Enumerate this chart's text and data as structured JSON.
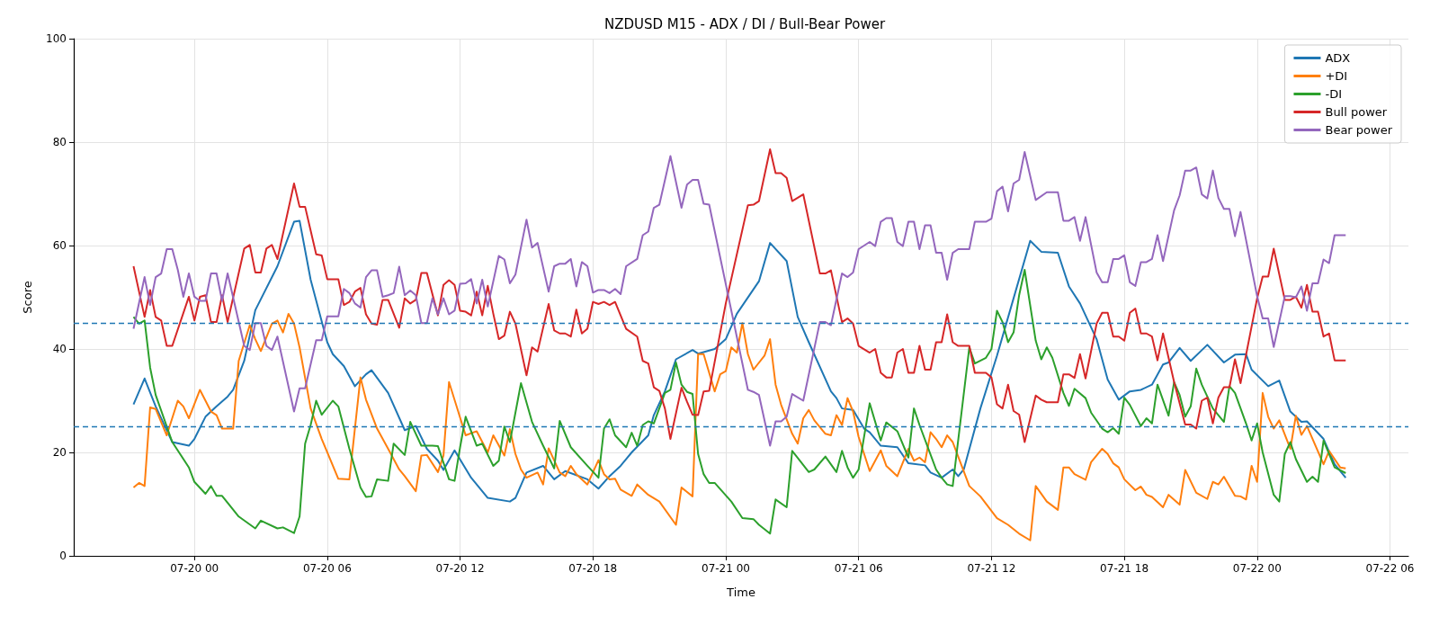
{
  "chart_data": {
    "type": "line",
    "title": "NZDUSD M15 - ADX / DI / Bull-Bear Power",
    "xlabel": "Time",
    "ylabel": "Score",
    "xlim": [
      "--07-19T18:33",
      "--07-22T06:50"
    ],
    "xticks": [
      {
        "value": "--07-20T00:00",
        "label": "07-20 00"
      },
      {
        "value": "--07-20T06:00",
        "label": "07-20 06"
      },
      {
        "value": "--07-20T12:00",
        "label": "07-20 12"
      },
      {
        "value": "--07-20T18:00",
        "label": "07-20 18"
      },
      {
        "value": "--07-21T00:00",
        "label": "07-21 00"
      },
      {
        "value": "--07-21T06:00",
        "label": "07-21 06"
      },
      {
        "value": "--07-21T12:00",
        "label": "07-21 12"
      },
      {
        "value": "--07-21T18:00",
        "label": "07-21 18"
      },
      {
        "value": "--07-22T00:00",
        "label": "07-22 00"
      },
      {
        "value": "--07-22T06:00",
        "label": "07-22 06"
      }
    ],
    "ylim": [
      0,
      100
    ],
    "yticks": [
      0,
      20,
      40,
      60,
      80,
      100
    ],
    "grid": true,
    "legend": "top right",
    "marker": "none",
    "line_style": "solid",
    "ref_lines": [
      {
        "axis": "y",
        "value": 45,
        "color": "#1f77b4",
        "line_style": "dashed"
      },
      {
        "axis": "y",
        "value": 25,
        "color": "#1f77b4",
        "line_style": "dashed"
      }
    ],
    "series": [
      {
        "name": "ADX",
        "color": "#1f77b4",
        "x": [
          "--07-19T21:15",
          "--07-19T21:45",
          "--07-19T22:15",
          "--07-19T23:00",
          "--07-19T23:45",
          "--07-20T00:00",
          "--07-20T00:30",
          "--07-20T01:00",
          "--07-20T01:30",
          "--07-20T01:45",
          "--07-20T02:15",
          "--07-20T02:45",
          "--07-20T03:45",
          "--07-20T04:30",
          "--07-20T04:45",
          "--07-20T05:15",
          "--07-20T06:00",
          "--07-20T06:15",
          "--07-20T06:45",
          "--07-20T07:15",
          "--07-20T07:45",
          "--07-20T08:00",
          "--07-20T08:45",
          "--07-20T09:30",
          "--07-20T10:00",
          "--07-20T10:30",
          "--07-20T11:00",
          "--07-20T11:15",
          "--07-20T11:45",
          "--07-20T12:30",
          "--07-20T13:15",
          "--07-20T14:15",
          "--07-20T14:30",
          "--07-20T15:00",
          "--07-20T15:45",
          "--07-20T16:15",
          "--07-20T16:45",
          "--07-20T17:45",
          "--07-20T18:15",
          "--07-20T18:45",
          "--07-20T19:15",
          "--07-20T19:45",
          "--07-20T20:30",
          "--07-20T20:45",
          "--07-20T21:15",
          "--07-20T21:45",
          "--07-20T22:30",
          "--07-20T22:45",
          "--07-20T23:30",
          "--07-21T00:00",
          "--07-21T00:30",
          "--07-21T01:30",
          "--07-21T02:00",
          "--07-21T02:45",
          "--07-21T03:15",
          "--07-21T03:45",
          "--07-21T04:45",
          "--07-21T05:00",
          "--07-21T05:15",
          "--07-21T05:45",
          "--07-21T06:15",
          "--07-21T06:30",
          "--07-21T07:00",
          "--07-21T07:45",
          "--07-21T08:15",
          "--07-21T09:00",
          "--07-21T09:15",
          "--07-21T09:45",
          "--07-21T10:15",
          "--07-21T10:30",
          "--07-21T10:45",
          "--07-21T11:30",
          "--07-21T12:15",
          "--07-21T13:00",
          "--07-21T13:45",
          "--07-21T14:15",
          "--07-21T15:00",
          "--07-21T15:30",
          "--07-21T16:00",
          "--07-21T16:15",
          "--07-21T16:45",
          "--07-21T17:15",
          "--07-21T17:45",
          "--07-21T18:15",
          "--07-21T18:45",
          "--07-21T19:15",
          "--07-21T19:45",
          "--07-21T20:00",
          "--07-21T20:30",
          "--07-21T21:00",
          "--07-21T21:45",
          "--07-21T22:30",
          "--07-21T23:00",
          "--07-21T23:30",
          "--07-21T23:45",
          "--07-22T00:30",
          "--07-22T01:00",
          "--07-22T01:30",
          "--07-22T02:00",
          "--07-22T02:15",
          "--07-22T03:00",
          "--07-22T03:30",
          "--07-22T04:00"
        ],
        "values": [
          29.3,
          34.3,
          28.9,
          22.0,
          21.3,
          22.6,
          26.9,
          28.9,
          30.8,
          32.1,
          37.7,
          47.5,
          56.0,
          64.6,
          64.8,
          53.4,
          41.3,
          39.0,
          36.7,
          32.8,
          35.1,
          35.9,
          31.5,
          24.3,
          25.1,
          20.7,
          18.4,
          16.6,
          20.4,
          15.1,
          11.2,
          10.5,
          11.2,
          16.1,
          17.4,
          14.8,
          16.4,
          14.8,
          13.0,
          15.4,
          17.4,
          20.0,
          23.3,
          27.2,
          31.8,
          38.0,
          39.8,
          39.1,
          40.0,
          41.9,
          46.8,
          53.1,
          60.5,
          57.0,
          46.2,
          41.3,
          31.8,
          30.5,
          28.5,
          28.2,
          24.6,
          23.9,
          21.3,
          21.0,
          17.9,
          17.5,
          16.1,
          15.1,
          16.7,
          15.4,
          16.7,
          28.5,
          38.7,
          49.8,
          60.9,
          58.8,
          58.6,
          52.1,
          48.8,
          46.5,
          41.9,
          34.1,
          30.2,
          31.8,
          32.1,
          33.1,
          37.0,
          37.4,
          40.2,
          37.7,
          40.8,
          37.4,
          38.9,
          39.0,
          36.0,
          32.8,
          33.9,
          27.9,
          25.9,
          26.0,
          22.6,
          17.7,
          15.1
        ]
      },
      {
        "name": "+DI",
        "color": "#ff7f0e",
        "x": [
          "--07-19T21:15",
          "--07-19T21:30",
          "--07-19T21:45",
          "--07-19T22:00",
          "--07-19T22:15",
          "--07-19T22:45",
          "--07-19T23:15",
          "--07-19T23:30",
          "--07-19T23:45",
          "--07-20T00:15",
          "--07-20T00:45",
          "--07-20T01:00",
          "--07-20T01:15",
          "--07-20T01:45",
          "--07-20T02:00",
          "--07-20T02:30",
          "--07-20T02:45",
          "--07-20T03:00",
          "--07-20T03:30",
          "--07-20T03:45",
          "--07-20T04:00",
          "--07-20T04:15",
          "--07-20T04:30",
          "--07-20T04:45",
          "--07-20T05:15",
          "--07-20T05:45",
          "--07-20T06:30",
          "--07-20T07:00",
          "--07-20T07:30",
          "--07-20T07:45",
          "--07-20T08:15",
          "--07-20T08:45",
          "--07-20T09:15",
          "--07-20T09:30",
          "--07-20T10:00",
          "--07-20T10:15",
          "--07-20T10:30",
          "--07-20T11:00",
          "--07-20T11:15",
          "--07-20T11:30",
          "--07-20T12:15",
          "--07-20T12:45",
          "--07-20T13:15",
          "--07-20T13:30",
          "--07-20T14:00",
          "--07-20T14:15",
          "--07-20T14:30",
          "--07-20T14:45",
          "--07-20T15:00",
          "--07-20T15:30",
          "--07-20T15:45",
          "--07-20T16:00",
          "--07-20T16:30",
          "--07-20T16:45",
          "--07-20T17:00",
          "--07-20T17:15",
          "--07-20T17:45",
          "--07-20T18:15",
          "--07-20T18:30",
          "--07-20T18:45",
          "--07-20T19:00",
          "--07-20T19:15",
          "--07-20T19:45",
          "--07-20T20:00",
          "--07-20T20:30",
          "--07-20T21:00",
          "--07-20T21:45",
          "--07-20T22:00",
          "--07-20T22:30",
          "--07-20T22:45",
          "--07-20T23:00",
          "--07-20T23:30",
          "--07-20T23:45",
          "--07-21T00:00",
          "--07-21T00:15",
          "--07-21T00:30",
          "--07-21T00:45",
          "--07-21T01:00",
          "--07-21T01:15",
          "--07-21T01:45",
          "--07-21T02:00",
          "--07-21T02:15",
          "--07-21T02:30",
          "--07-21T03:00",
          "--07-21T03:15",
          "--07-21T03:30",
          "--07-21T03:45",
          "--07-21T04:00",
          "--07-21T04:30",
          "--07-21T04:45",
          "--07-21T05:00",
          "--07-21T05:15",
          "--07-21T05:30",
          "--07-21T05:45",
          "--07-21T06:00",
          "--07-21T06:30",
          "--07-21T07:00",
          "--07-21T07:15",
          "--07-21T07:45",
          "--07-21T08:15",
          "--07-21T08:30",
          "--07-21T08:45",
          "--07-21T09:00",
          "--07-21T09:15",
          "--07-21T09:30",
          "--07-21T09:45",
          "--07-21T10:00",
          "--07-21T10:15",
          "--07-21T11:00",
          "--07-21T11:30",
          "--07-21T12:15",
          "--07-21T12:45",
          "--07-21T13:15",
          "--07-21T13:45",
          "--07-21T14:00",
          "--07-21T14:30",
          "--07-21T15:00",
          "--07-21T15:15",
          "--07-21T15:30",
          "--07-21T15:45",
          "--07-21T16:15",
          "--07-21T16:30",
          "--07-21T17:00",
          "--07-21T17:15",
          "--07-21T17:30",
          "--07-21T17:45",
          "--07-21T18:00",
          "--07-21T18:30",
          "--07-21T18:45",
          "--07-21T19:00",
          "--07-21T19:15",
          "--07-21T19:45",
          "--07-21T20:00",
          "--07-21T20:30",
          "--07-21T20:45",
          "--07-21T21:15",
          "--07-21T21:45",
          "--07-21T22:00",
          "--07-21T22:15",
          "--07-21T22:30",
          "--07-21T23:00",
          "--07-21T23:15",
          "--07-21T23:30",
          "--07-21T23:45",
          "--07-22T00:00",
          "--07-22T00:15",
          "--07-22T00:30",
          "--07-22T00:45",
          "--07-22T01:00",
          "--07-22T01:30",
          "--07-22T01:45",
          "--07-22T02:00",
          "--07-22T02:15",
          "--07-22T03:00",
          "--07-22T03:15",
          "--07-22T03:45",
          "--07-22T04:00"
        ],
        "values": [
          13.2,
          14.1,
          13.5,
          28.7,
          28.4,
          23.3,
          30.0,
          28.9,
          26.6,
          32.1,
          27.9,
          27.2,
          24.6,
          24.6,
          37.7,
          44.6,
          41.9,
          39.6,
          44.9,
          45.5,
          43.2,
          46.8,
          44.9,
          40.3,
          28.5,
          22.6,
          14.9,
          14.8,
          34.5,
          30.2,
          24.6,
          20.7,
          16.7,
          15.4,
          12.5,
          19.4,
          19.5,
          16.2,
          19.4,
          33.6,
          23.3,
          24.1,
          20.0,
          23.3,
          19.4,
          24.5,
          19.7,
          16.7,
          15.1,
          16.1,
          13.8,
          20.8,
          16.1,
          15.4,
          17.4,
          15.8,
          13.8,
          18.5,
          15.8,
          14.8,
          14.9,
          12.8,
          11.6,
          13.8,
          11.8,
          10.5,
          6.0,
          13.2,
          11.5,
          39.0,
          39.0,
          31.8,
          35.1,
          35.7,
          40.3,
          39.3,
          45.0,
          39.0,
          36.0,
          38.7,
          41.9,
          33.1,
          29.2,
          23.6,
          21.7,
          26.6,
          28.2,
          26.2,
          23.6,
          23.3,
          27.2,
          25.3,
          30.5,
          27.9,
          23.0,
          16.4,
          20.4,
          17.4,
          15.4,
          20.7,
          18.4,
          19.0,
          18.1,
          23.9,
          22.6,
          21.0,
          23.3,
          22.0,
          13.5,
          11.5,
          7.3,
          6.0,
          4.3,
          3.0,
          13.5,
          10.5,
          8.9,
          17.1,
          17.1,
          15.8,
          14.7,
          18.1,
          20.7,
          19.7,
          17.9,
          17.1,
          14.8,
          12.7,
          13.4,
          11.8,
          11.4,
          9.4,
          11.8,
          9.9,
          16.6,
          12.2,
          11.0,
          14.3,
          13.8,
          15.3,
          11.6,
          11.5,
          10.9,
          17.4,
          14.3,
          31.5,
          26.9,
          24.6,
          26.2,
          20.7,
          27.1,
          23.4,
          25.1,
          17.7,
          20.3,
          17.1,
          16.9
        ]
      },
      {
        "name": "-DI",
        "color": "#2ca02c",
        "x": [
          "--07-19T21:15",
          "--07-19T21:30",
          "--07-19T21:45",
          "--07-19T22:00",
          "--07-19T22:15",
          "--07-19T23:00",
          "--07-19T23:45",
          "--07-20T00:00",
          "--07-20T00:30",
          "--07-20T00:45",
          "--07-20T01:00",
          "--07-20T01:15",
          "--07-20T02:00",
          "--07-20T02:45",
          "--07-20T03:00",
          "--07-20T03:45",
          "--07-20T04:00",
          "--07-20T04:30",
          "--07-20T04:45",
          "--07-20T05:00",
          "--07-20T05:15",
          "--07-20T05:30",
          "--07-20T05:45",
          "--07-20T06:15",
          "--07-20T06:30",
          "--07-20T07:00",
          "--07-20T07:30",
          "--07-20T07:45",
          "--07-20T08:00",
          "--07-20T08:15",
          "--07-20T08:45",
          "--07-20T09:00",
          "--07-20T09:30",
          "--07-20T09:45",
          "--07-20T10:15",
          "--07-20T10:45",
          "--07-20T11:00",
          "--07-20T11:30",
          "--07-20T11:45",
          "--07-20T12:00",
          "--07-20T12:15",
          "--07-20T12:45",
          "--07-20T13:00",
          "--07-20T13:30",
          "--07-20T13:45",
          "--07-20T14:00",
          "--07-20T14:15",
          "--07-20T14:45",
          "--07-20T15:15",
          "--07-20T15:45",
          "--07-20T16:15",
          "--07-20T16:30",
          "--07-20T17:00",
          "--07-20T17:45",
          "--07-20T18:15",
          "--07-20T18:30",
          "--07-20T18:45",
          "--07-20T19:00",
          "--07-20T19:30",
          "--07-20T19:45",
          "--07-20T20:00",
          "--07-20T20:15",
          "--07-20T20:30",
          "--07-20T20:45",
          "--07-20T21:15",
          "--07-20T21:30",
          "--07-20T21:45",
          "--07-20T22:00",
          "--07-20T22:15",
          "--07-20T22:30",
          "--07-20T22:45",
          "--07-20T23:00",
          "--07-20T23:15",
          "--07-20T23:30",
          "--07-21T00:15",
          "--07-21T00:45",
          "--07-21T01:15",
          "--07-21T01:30",
          "--07-21T02:00",
          "--07-21T02:15",
          "--07-21T02:45",
          "--07-21T03:00",
          "--07-21T03:45",
          "--07-21T04:00",
          "--07-21T04:30",
          "--07-21T05:00",
          "--07-21T05:15",
          "--07-21T05:30",
          "--07-21T05:45",
          "--07-21T06:00",
          "--07-21T06:30",
          "--07-21T07:00",
          "--07-21T07:15",
          "--07-21T07:45",
          "--07-21T08:15",
          "--07-21T08:30",
          "--07-21T08:45",
          "--07-21T09:30",
          "--07-21T09:45",
          "--07-21T10:00",
          "--07-21T10:15",
          "--07-21T11:00",
          "--07-21T11:15",
          "--07-21T11:45",
          "--07-21T12:00",
          "--07-21T12:15",
          "--07-21T12:30",
          "--07-21T12:45",
          "--07-21T13:00",
          "--07-21T13:15",
          "--07-21T13:30",
          "--07-21T14:00",
          "--07-21T14:15",
          "--07-21T14:30",
          "--07-21T14:45",
          "--07-21T15:15",
          "--07-21T15:30",
          "--07-21T15:45",
          "--07-21T16:15",
          "--07-21T16:30",
          "--07-21T17:00",
          "--07-21T17:15",
          "--07-21T17:30",
          "--07-21T17:45",
          "--07-21T18:00",
          "--07-21T18:15",
          "--07-21T18:45",
          "--07-21T19:00",
          "--07-21T19:15",
          "--07-21T19:30",
          "--07-21T20:00",
          "--07-21T20:15",
          "--07-21T20:30",
          "--07-21T20:45",
          "--07-21T21:00",
          "--07-21T21:15",
          "--07-21T21:30",
          "--07-21T22:00",
          "--07-21T22:30",
          "--07-21T22:45",
          "--07-21T23:00",
          "--07-21T23:30",
          "--07-21T23:45",
          "--07-22T00:00",
          "--07-22T00:15",
          "--07-22T00:45",
          "--07-22T01:00",
          "--07-22T01:15",
          "--07-22T01:30",
          "--07-22T01:45",
          "--07-22T02:15",
          "--07-22T02:30",
          "--07-22T02:45",
          "--07-22T03:00",
          "--07-22T03:30",
          "--07-22T04:00"
        ],
        "values": [
          46.2,
          44.9,
          45.5,
          36.4,
          31.1,
          22.0,
          17.1,
          14.3,
          12.0,
          13.5,
          11.6,
          11.6,
          7.6,
          5.3,
          6.8,
          5.3,
          5.5,
          4.4,
          7.6,
          21.7,
          25.3,
          30.0,
          27.3,
          30.0,
          28.9,
          20.7,
          13.2,
          11.4,
          11.5,
          14.8,
          14.5,
          21.7,
          19.5,
          25.9,
          21.3,
          21.3,
          21.2,
          14.8,
          14.5,
          21.0,
          26.9,
          21.3,
          21.7,
          17.4,
          18.4,
          25.0,
          22.0,
          33.4,
          25.9,
          21.3,
          16.9,
          26.1,
          21.0,
          17.4,
          15.1,
          24.6,
          26.4,
          23.3,
          21.0,
          23.8,
          21.3,
          25.3,
          26.0,
          25.6,
          31.5,
          32.1,
          37.4,
          33.1,
          31.7,
          31.3,
          19.7,
          15.8,
          14.1,
          14.1,
          10.5,
          7.3,
          7.1,
          6.0,
          4.3,
          10.9,
          9.4,
          20.3,
          16.2,
          16.7,
          19.2,
          16.2,
          20.3,
          17.1,
          15.1,
          16.7,
          29.5,
          22.3,
          25.8,
          24.1,
          19.0,
          28.5,
          25.3,
          16.7,
          15.1,
          13.8,
          13.5,
          40.3,
          37.2,
          38.3,
          40.0,
          47.4,
          45.2,
          41.3,
          43.2,
          50.4,
          55.3,
          41.6,
          38.0,
          40.3,
          38.3,
          31.5,
          29.0,
          32.3,
          30.5,
          27.7,
          24.6,
          23.9,
          24.7,
          23.6,
          30.6,
          29.2,
          25.1,
          26.6,
          25.6,
          33.1,
          27.1,
          33.6,
          31.1,
          26.9,
          28.9,
          36.2,
          33.1,
          28.5,
          25.9,
          32.8,
          31.5,
          25.6,
          22.3,
          25.6,
          20.0,
          11.8,
          10.5,
          19.7,
          22.0,
          18.7,
          14.3,
          15.3,
          14.3,
          22.3,
          17.1,
          16.0
        ]
      },
      {
        "name": "Bull power",
        "color": "#d62728",
        "x": [
          "--07-19T21:15",
          "--07-19T21:45",
          "--07-19T22:00",
          "--07-19T22:15",
          "--07-19T22:30",
          "--07-19T22:45",
          "--07-19T23:00",
          "--07-19T23:45",
          "--07-20T00:00",
          "--07-20T00:15",
          "--07-20T00:30",
          "--07-20T00:45",
          "--07-20T01:00",
          "--07-20T01:15",
          "--07-20T01:30",
          "--07-20T02:15",
          "--07-20T02:30",
          "--07-20T02:45",
          "--07-20T03:00",
          "--07-20T03:15",
          "--07-20T03:30",
          "--07-20T03:45",
          "--07-20T04:30",
          "--07-20T04:45",
          "--07-20T05:00",
          "--07-20T05:30",
          "--07-20T05:45",
          "--07-20T06:00",
          "--07-20T06:30",
          "--07-20T06:45",
          "--07-20T07:00",
          "--07-20T07:15",
          "--07-20T07:30",
          "--07-20T07:45",
          "--07-20T08:00",
          "--07-20T08:15",
          "--07-20T08:30",
          "--07-20T08:45",
          "--07-20T09:15",
          "--07-20T09:30",
          "--07-20T09:45",
          "--07-20T10:00",
          "--07-20T10:15",
          "--07-20T10:30",
          "--07-20T11:00",
          "--07-20T11:15",
          "--07-20T11:30",
          "--07-20T11:45",
          "--07-20T12:00",
          "--07-20T12:15",
          "--07-20T12:30",
          "--07-20T12:45",
          "--07-20T13:00",
          "--07-20T13:15",
          "--07-20T13:30",
          "--07-20T13:45",
          "--07-20T14:00",
          "--07-20T14:15",
          "--07-20T14:30",
          "--07-20T15:00",
          "--07-20T15:15",
          "--07-20T15:30",
          "--07-20T16:00",
          "--07-20T16:15",
          "--07-20T16:30",
          "--07-20T16:45",
          "--07-20T17:00",
          "--07-20T17:15",
          "--07-20T17:30",
          "--07-20T17:45",
          "--07-20T18:00",
          "--07-20T18:15",
          "--07-20T18:30",
          "--07-20T18:45",
          "--07-20T19:00",
          "--07-20T19:30",
          "--07-20T20:00",
          "--07-20T20:15",
          "--07-20T20:30",
          "--07-20T20:45",
          "--07-20T21:00",
          "--07-20T21:15",
          "--07-20T21:30",
          "--07-20T22:00",
          "--07-20T22:15",
          "--07-20T22:30",
          "--07-20T22:45",
          "--07-20T23:00",
          "--07-20T23:15",
          "--07-21T00:00",
          "--07-21T01:00",
          "--07-21T01:15",
          "--07-21T01:30",
          "--07-21T02:00",
          "--07-21T02:15",
          "--07-21T02:30",
          "--07-21T02:45",
          "--07-21T03:00",
          "--07-21T03:30",
          "--07-21T04:15",
          "--07-21T04:30",
          "--07-21T04:45",
          "--07-21T05:15",
          "--07-21T05:30",
          "--07-21T05:45",
          "--07-21T06:00",
          "--07-21T06:30",
          "--07-21T06:45",
          "--07-21T07:00",
          "--07-21T07:15",
          "--07-21T07:30",
          "--07-21T07:45",
          "--07-21T08:00",
          "--07-21T08:15",
          "--07-21T08:30",
          "--07-21T08:45",
          "--07-21T09:00",
          "--07-21T09:15",
          "--07-21T09:30",
          "--07-21T09:45",
          "--07-21T10:00",
          "--07-21T10:15",
          "--07-21T10:30",
          "--07-21T11:00",
          "--07-21T11:15",
          "--07-21T11:45",
          "--07-21T12:00",
          "--07-21T12:15",
          "--07-21T12:30",
          "--07-21T12:45",
          "--07-21T13:00",
          "--07-21T13:15",
          "--07-21T13:30",
          "--07-21T14:00",
          "--07-21T14:15",
          "--07-21T14:30",
          "--07-21T15:00",
          "--07-21T15:15",
          "--07-21T15:30",
          "--07-21T15:45",
          "--07-21T16:00",
          "--07-21T16:15",
          "--07-21T16:45",
          "--07-21T17:00",
          "--07-21T17:15",
          "--07-21T17:30",
          "--07-21T17:45",
          "--07-21T18:00",
          "--07-21T18:15",
          "--07-21T18:30",
          "--07-21T18:45",
          "--07-21T19:00",
          "--07-21T19:15",
          "--07-21T19:30",
          "--07-21T19:45",
          "--07-21T20:15",
          "--07-21T20:45",
          "--07-21T21:00",
          "--07-21T21:15",
          "--07-21T21:30",
          "--07-21T21:45",
          "--07-21T22:00",
          "--07-21T22:15",
          "--07-21T22:30",
          "--07-21T22:45",
          "--07-21T23:00",
          "--07-21T23:15",
          "--07-22T00:00",
          "--07-22T00:15",
          "--07-22T00:30",
          "--07-22T00:45",
          "--07-22T01:15",
          "--07-22T01:30",
          "--07-22T01:45",
          "--07-22T02:00",
          "--07-22T02:15",
          "--07-22T02:30",
          "--07-22T02:45",
          "--07-22T03:00",
          "--07-22T03:15",
          "--07-22T03:30",
          "--07-22T04:00"
        ],
        "values": [
          56.0,
          46.2,
          51.4,
          46.2,
          45.5,
          40.6,
          40.6,
          50.1,
          45.5,
          50.1,
          50.4,
          45.2,
          45.2,
          50.4,
          45.2,
          59.4,
          60.1,
          54.8,
          54.8,
          59.4,
          60.1,
          57.4,
          72.0,
          67.5,
          67.5,
          58.3,
          58.1,
          53.5,
          53.5,
          48.5,
          49.1,
          51.1,
          51.8,
          46.7,
          44.9,
          44.7,
          49.5,
          49.5,
          44.1,
          49.8,
          48.8,
          49.5,
          54.7,
          54.7,
          46.5,
          52.4,
          53.3,
          52.4,
          47.4,
          47.2,
          46.5,
          51.1,
          46.5,
          52.2,
          46.8,
          41.9,
          42.6,
          47.2,
          44.9,
          34.9,
          40.3,
          39.5,
          48.7,
          43.6,
          43.0,
          43.0,
          42.4,
          47.6,
          43.0,
          43.9,
          49.1,
          48.7,
          49.1,
          48.5,
          49.1,
          43.9,
          42.4,
          37.7,
          37.2,
          32.6,
          31.9,
          28.5,
          22.6,
          32.5,
          29.8,
          27.3,
          27.2,
          31.8,
          31.9,
          48.8,
          67.8,
          67.9,
          68.6,
          78.6,
          74.0,
          74.0,
          73.1,
          68.6,
          69.9,
          54.6,
          54.6,
          55.2,
          45.2,
          45.9,
          44.9,
          40.6,
          39.3,
          40.0,
          35.4,
          34.5,
          34.5,
          39.3,
          40.0,
          35.4,
          35.4,
          40.6,
          36.0,
          36.0,
          41.3,
          41.3,
          46.7,
          41.3,
          40.6,
          40.6,
          35.4,
          35.4,
          34.5,
          29.3,
          28.5,
          33.1,
          28.0,
          27.3,
          22.0,
          31.0,
          30.2,
          29.7,
          29.7,
          35.1,
          35.1,
          34.4,
          39.0,
          34.3,
          44.9,
          47.0,
          47.0,
          42.4,
          42.4,
          41.6,
          47.0,
          47.8,
          43.0,
          43.0,
          42.4,
          37.8,
          43.0,
          33.6,
          25.4,
          25.4,
          24.6,
          30.0,
          30.6,
          25.6,
          30.6,
          32.6,
          32.6,
          38.0,
          33.4,
          49.8,
          54.0,
          54.0,
          59.4,
          49.5,
          49.5,
          50.1,
          48.0,
          52.4,
          47.2,
          47.2,
          42.4,
          43.0,
          37.8,
          37.8
        ]
      },
      {
        "name": "Bear power",
        "color": "#9467bd",
        "x": [
          "--07-19T21:15",
          "--07-19T21:45",
          "--07-19T22:00",
          "--07-19T22:15",
          "--07-19T22:30",
          "--07-19T22:45",
          "--07-19T23:00",
          "--07-19T23:15",
          "--07-19T23:30",
          "--07-19T23:45",
          "--07-20T00:00",
          "--07-20T00:15",
          "--07-20T00:30",
          "--07-20T00:45",
          "--07-20T01:00",
          "--07-20T01:15",
          "--07-20T01:30",
          "--07-20T02:15",
          "--07-20T02:30",
          "--07-20T02:45",
          "--07-20T03:00",
          "--07-20T03:15",
          "--07-20T03:30",
          "--07-20T03:45",
          "--07-20T04:30",
          "--07-20T04:45",
          "--07-20T05:00",
          "--07-20T05:30",
          "--07-20T05:45",
          "--07-20T06:00",
          "--07-20T06:30",
          "--07-20T06:45",
          "--07-20T07:00",
          "--07-20T07:15",
          "--07-20T07:30",
          "--07-20T07:45",
          "--07-20T08:00",
          "--07-20T08:15",
          "--07-20T08:30",
          "--07-20T08:45",
          "--07-20T09:00",
          "--07-20T09:15",
          "--07-20T09:30",
          "--07-20T09:45",
          "--07-20T10:00",
          "--07-20T10:15",
          "--07-20T10:30",
          "--07-20T10:45",
          "--07-20T11:00",
          "--07-20T11:15",
          "--07-20T11:30",
          "--07-20T11:45",
          "--07-20T12:00",
          "--07-20T12:15",
          "--07-20T12:30",
          "--07-20T12:45",
          "--07-20T13:00",
          "--07-20T13:15",
          "--07-20T13:45",
          "--07-20T14:00",
          "--07-20T14:15",
          "--07-20T14:30",
          "--07-20T15:00",
          "--07-20T15:15",
          "--07-20T15:30",
          "--07-20T16:00",
          "--07-20T16:15",
          "--07-20T16:30",
          "--07-20T16:45",
          "--07-20T17:00",
          "--07-20T17:15",
          "--07-20T17:30",
          "--07-20T17:45",
          "--07-20T18:00",
          "--07-20T18:15",
          "--07-20T18:30",
          "--07-20T18:45",
          "--07-20T19:00",
          "--07-20T19:15",
          "--07-20T19:30",
          "--07-20T20:00",
          "--07-20T20:15",
          "--07-20T20:30",
          "--07-20T20:45",
          "--07-20T21:00",
          "--07-20T21:30",
          "--07-20T22:00",
          "--07-20T22:15",
          "--07-20T22:30",
          "--07-20T22:45",
          "--07-20T23:00",
          "--07-20T23:15",
          "--07-21T01:00",
          "--07-21T01:15",
          "--07-21T01:30",
          "--07-21T02:00",
          "--07-21T02:15",
          "--07-21T02:30",
          "--07-21T02:45",
          "--07-21T03:00",
          "--07-21T03:30",
          "--07-21T04:15",
          "--07-21T04:30",
          "--07-21T04:45",
          "--07-21T05:15",
          "--07-21T05:30",
          "--07-21T05:45",
          "--07-21T06:00",
          "--07-21T06:30",
          "--07-21T06:45",
          "--07-21T07:00",
          "--07-21T07:15",
          "--07-21T07:30",
          "--07-21T07:45",
          "--07-21T08:00",
          "--07-21T08:15",
          "--07-21T08:30",
          "--07-21T08:45",
          "--07-21T09:00",
          "--07-21T09:15",
          "--07-21T09:30",
          "--07-21T09:45",
          "--07-21T10:00",
          "--07-21T10:15",
          "--07-21T10:30",
          "--07-21T11:00",
          "--07-21T11:15",
          "--07-21T11:45",
          "--07-21T12:00",
          "--07-21T12:15",
          "--07-21T12:30",
          "--07-21T12:45",
          "--07-21T13:00",
          "--07-21T13:15",
          "--07-21T13:30",
          "--07-21T14:00",
          "--07-21T14:30",
          "--07-21T15:00",
          "--07-21T15:15",
          "--07-21T15:30",
          "--07-21T15:45",
          "--07-21T16:00",
          "--07-21T16:15",
          "--07-21T16:45",
          "--07-21T17:00",
          "--07-21T17:15",
          "--07-21T17:30",
          "--07-21T17:45",
          "--07-21T18:00",
          "--07-21T18:15",
          "--07-21T18:30",
          "--07-21T18:45",
          "--07-21T19:00",
          "--07-21T19:15",
          "--07-21T19:30",
          "--07-21T19:45",
          "--07-21T20:15",
          "--07-21T20:30",
          "--07-21T20:45",
          "--07-21T21:00",
          "--07-21T21:15",
          "--07-21T21:30",
          "--07-21T21:45",
          "--07-21T22:00",
          "--07-21T22:15",
          "--07-21T22:30",
          "--07-21T22:45",
          "--07-21T23:00",
          "--07-21T23:15",
          "--07-22T00:00",
          "--07-22T00:15",
          "--07-22T00:30",
          "--07-22T00:45",
          "--07-22T01:15",
          "--07-22T01:30",
          "--07-22T01:45",
          "--07-22T02:00",
          "--07-22T02:15",
          "--07-22T02:30",
          "--07-22T02:45",
          "--07-22T03:00",
          "--07-22T03:15",
          "--07-22T03:30",
          "--07-22T04:00"
        ],
        "values": [
          43.9,
          53.9,
          48.5,
          53.9,
          54.6,
          59.3,
          59.3,
          55.3,
          50.1,
          54.6,
          50.1,
          49.3,
          49.3,
          54.6,
          54.6,
          49.3,
          54.6,
          40.6,
          39.8,
          45.0,
          45.0,
          40.6,
          39.8,
          42.4,
          27.9,
          32.4,
          32.4,
          41.7,
          41.7,
          46.3,
          46.3,
          51.6,
          50.8,
          48.8,
          48.0,
          53.9,
          55.2,
          55.2,
          50.1,
          50.4,
          50.8,
          55.9,
          50.4,
          51.3,
          50.4,
          45.0,
          45.0,
          49.8,
          46.7,
          49.8,
          46.7,
          47.4,
          52.6,
          52.7,
          53.5,
          48.8,
          53.4,
          48.2,
          58.0,
          57.3,
          52.7,
          54.4,
          65.0,
          59.6,
          60.5,
          51.1,
          56.0,
          56.5,
          56.5,
          57.4,
          52.1,
          56.8,
          56.0,
          50.9,
          51.4,
          51.4,
          50.8,
          51.6,
          50.6,
          56.0,
          57.4,
          62.0,
          62.7,
          67.3,
          67.9,
          77.3,
          67.3,
          71.8,
          72.7,
          72.7,
          68.1,
          67.9,
          32.1,
          31.7,
          31.1,
          21.3,
          26.0,
          26.0,
          26.9,
          31.3,
          30.0,
          45.2,
          45.2,
          44.6,
          54.6,
          53.9,
          54.8,
          59.3,
          60.7,
          59.9,
          64.6,
          65.3,
          65.3,
          60.7,
          59.9,
          64.6,
          64.6,
          59.3,
          63.9,
          63.9,
          58.6,
          58.6,
          53.4,
          58.6,
          59.3,
          59.3,
          64.6,
          64.6,
          65.2,
          70.5,
          71.4,
          66.6,
          72.0,
          72.7,
          78.1,
          68.8,
          70.3,
          70.3,
          64.8,
          64.8,
          65.5,
          60.9,
          65.5,
          54.8,
          52.9,
          52.9,
          57.4,
          57.4,
          58.1,
          52.9,
          52.2,
          56.8,
          56.8,
          57.4,
          62.0,
          57.0,
          66.8,
          69.7,
          74.5,
          74.5,
          75.1,
          69.9,
          69.1,
          74.5,
          69.2,
          67.1,
          67.1,
          61.8,
          66.5,
          50.2,
          45.9,
          45.9,
          40.4,
          50.2,
          50.2,
          50.0,
          52.1,
          47.4,
          52.7,
          52.7,
          57.3,
          56.6,
          62.0,
          62.0
        ]
      }
    ]
  }
}
